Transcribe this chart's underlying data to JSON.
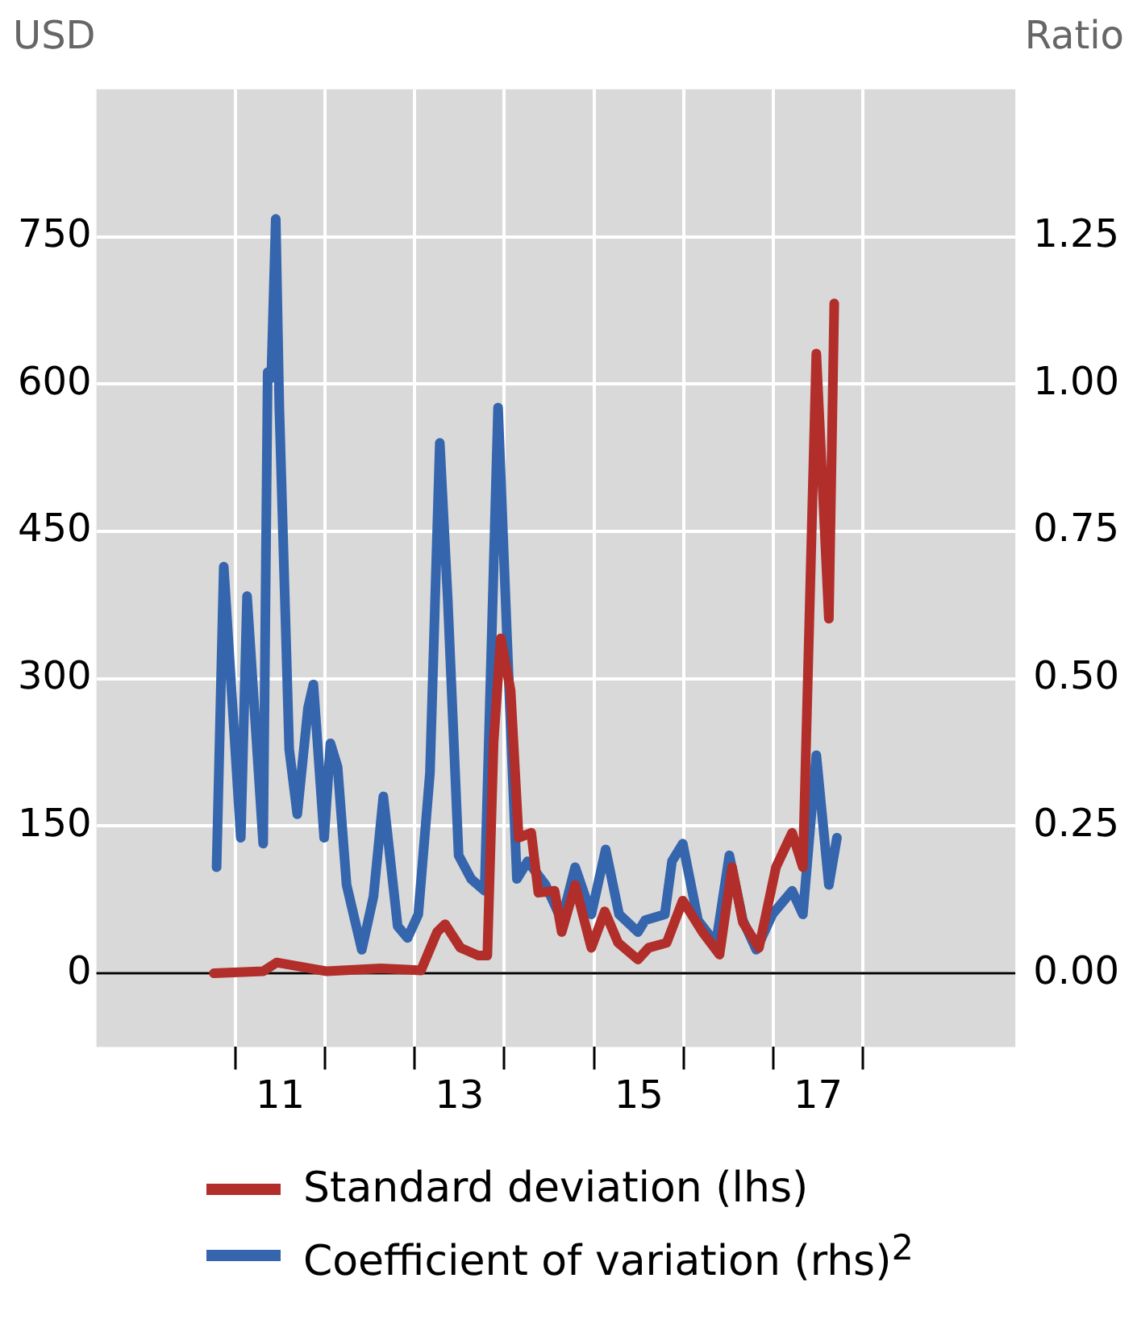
{
  "chart_data": {
    "type": "line",
    "ylabel": "USD",
    "y2label": "Ratio",
    "xlim": [
      8.95,
      19.2
    ],
    "xticks": [
      {
        "value": 10.5,
        "label": null
      },
      11,
      {
        "value": 11.5,
        "label": null
      },
      {
        "value": 12.5,
        "label": null
      },
      13,
      {
        "value": 13.5,
        "label": null
      },
      {
        "value": 14.5,
        "label": null
      },
      15,
      {
        "value": 15.5,
        "label": null
      },
      {
        "value": 16.5,
        "label": null
      },
      17,
      {
        "value": 17.5,
        "label": null
      }
    ],
    "ylim": [
      -75,
      900
    ],
    "yticks": [
      0,
      150,
      300,
      450,
      600,
      750
    ],
    "y2lim": [
      -0.125,
      1.5
    ],
    "y2ticks": [
      {
        "value": 0,
        "label": "0.00"
      },
      {
        "value": 0.25,
        "label": "0.25"
      },
      {
        "value": 0.5,
        "label": "0.50"
      },
      {
        "value": 0.75,
        "label": "0.75"
      },
      {
        "value": 1,
        "label": "1.00"
      },
      {
        "value": 1.25,
        "label": "1.25"
      }
    ],
    "grid": true,
    "legend": "bottom",
    "marker": "none",
    "line_style": "solid",
    "series": [
      {
        "name": "Standard deviation (lhs)",
        "color": "#b22e2a",
        "x": [
          10.26,
          10.81,
          10.96,
          11.52,
          12.12,
          12.57,
          12.75,
          12.84,
          13.01,
          13.21,
          13.31,
          13.38,
          13.46,
          13.57,
          13.66,
          13.8,
          13.88,
          14.06,
          14.14,
          14.29,
          14.47,
          14.62,
          14.77,
          14.99,
          15.11,
          15.31,
          15.49,
          15.71,
          15.9,
          16.04,
          16.16,
          16.34,
          16.53,
          16.71,
          16.83,
          16.98,
          17.12,
          17.18
        ],
        "values": [
          0,
          2,
          11,
          2,
          5,
          3,
          42,
          50,
          26,
          18,
          18,
          235,
          341,
          288,
          138,
          143,
          82,
          84,
          42,
          90,
          26,
          63,
          31,
          14,
          26,
          31,
          74,
          42,
          19,
          108,
          52,
          26,
          108,
          143,
          108,
          631,
          361,
          682
        ]
      },
      {
        "name": "Coefficient of variation (rhs)$^{2}$",
        "color": "#3465ad",
        "axis": "y2",
        "x": [
          10.29,
          10.37,
          10.56,
          10.63,
          10.81,
          10.86,
          10.9,
          10.95,
          10.99,
          11.1,
          11.19,
          11.31,
          11.37,
          11.49,
          11.56,
          11.64,
          11.74,
          11.91,
          12.04,
          12.15,
          12.31,
          12.42,
          12.54,
          12.67,
          12.78,
          12.87,
          12.99,
          13.13,
          13.28,
          13.43,
          13.53,
          13.64,
          13.76,
          13.96,
          14.14,
          14.29,
          14.47,
          14.63,
          14.78,
          14.99,
          15.07,
          15.29,
          15.37,
          15.49,
          15.66,
          15.86,
          16.01,
          16.16,
          16.31,
          16.49,
          16.71,
          16.83,
          16.98,
          17.12,
          17.21
        ],
        "values": [
          0.18,
          0.69,
          0.23,
          0.64,
          0.22,
          1.02,
          1.01,
          1.28,
          0.96,
          0.38,
          0.27,
          0.45,
          0.49,
          0.23,
          0.39,
          0.35,
          0.15,
          0.04,
          0.13,
          0.3,
          0.08,
          0.06,
          0.1,
          0.34,
          0.9,
          0.63,
          0.2,
          0.16,
          0.14,
          0.96,
          0.57,
          0.16,
          0.19,
          0.15,
          0.09,
          0.18,
          0.1,
          0.21,
          0.1,
          0.07,
          0.09,
          0.1,
          0.19,
          0.22,
          0.09,
          0.05,
          0.2,
          0.09,
          0.04,
          0.1,
          0.14,
          0.1,
          0.37,
          0.15,
          0.23
        ]
      }
    ]
  }
}
